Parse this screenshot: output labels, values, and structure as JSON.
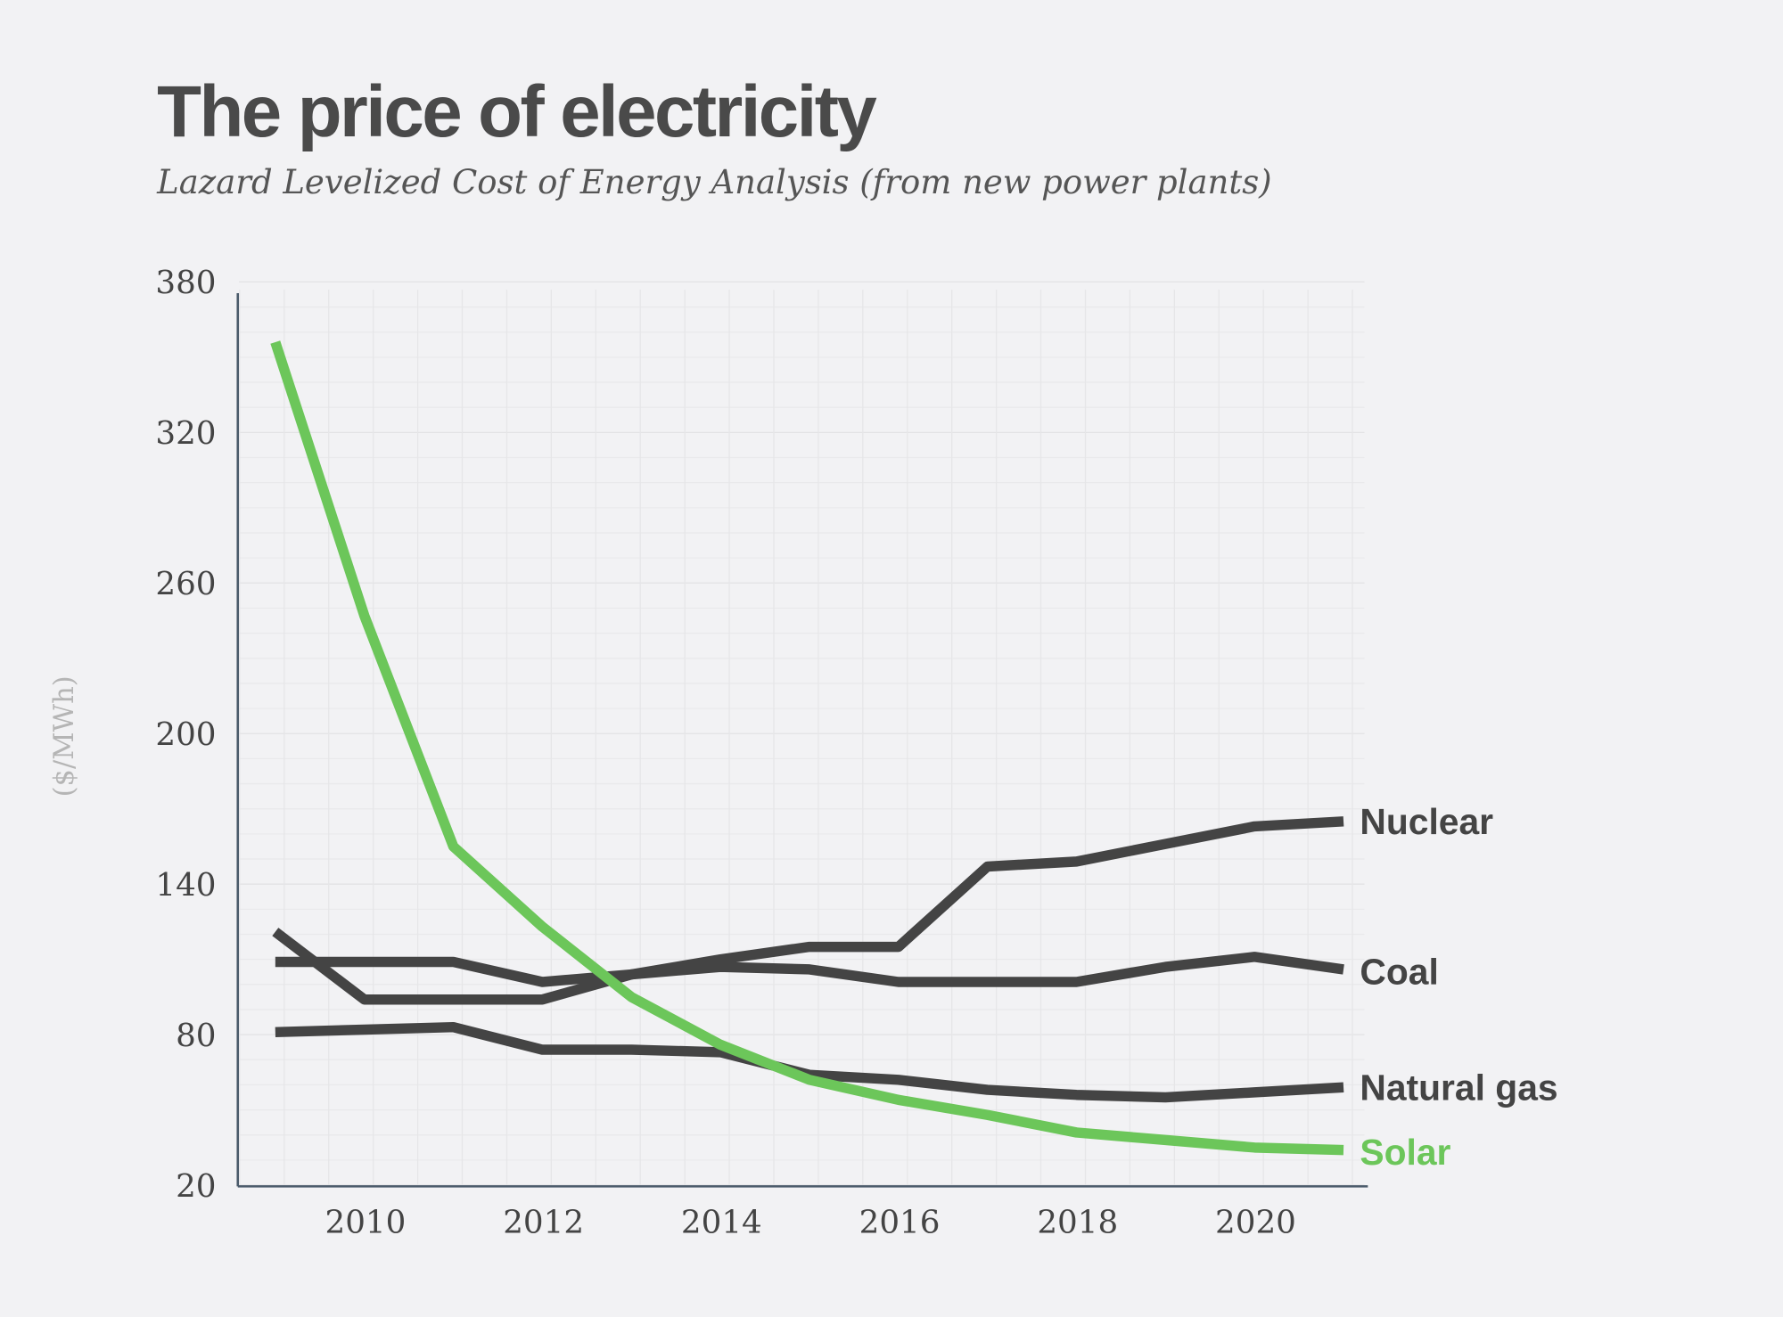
{
  "chart_data": {
    "type": "line",
    "title": "The price of electricity",
    "subtitle": "Lazard Levelized Cost of Energy Analysis (from new power plants)",
    "xlabel": "",
    "ylabel": "($/MWh)",
    "xlim": [
      2009,
      2021
    ],
    "ylim": [
      20,
      380
    ],
    "yticks": [
      "380",
      "320",
      "260",
      "200",
      "140",
      "80",
      "20"
    ],
    "ytick_values": [
      380,
      320,
      260,
      200,
      140,
      80,
      20
    ],
    "xticks": [
      "2010",
      "2012",
      "2014",
      "2016",
      "2018",
      "2020"
    ],
    "xtick_values": [
      2010,
      2012,
      2014,
      2016,
      2018,
      2020
    ],
    "grid": true,
    "legend": "direct labels at line ends (right)",
    "x": [
      2009,
      2010,
      2011,
      2012,
      2013,
      2014,
      2015,
      2016,
      2017,
      2018,
      2019,
      2020,
      2021
    ],
    "series": [
      {
        "name": "Nuclear",
        "color": "#444444",
        "values": [
          121,
          94,
          94,
          94,
          104,
          110,
          115,
          115,
          147,
          149,
          156,
          163,
          165
        ]
      },
      {
        "name": "Coal",
        "color": "#444444",
        "values": [
          109,
          109,
          109,
          101,
          104,
          107,
          106,
          101,
          101,
          101,
          107,
          111,
          106
        ]
      },
      {
        "name": "Natural gas",
        "color": "#444444",
        "values": [
          81,
          82,
          83,
          74,
          74,
          73,
          64,
          62,
          58,
          56,
          55,
          57,
          59
        ]
      },
      {
        "name": "Solar",
        "color": "#6cc65a",
        "values": [
          356,
          247,
          155,
          123,
          95,
          76,
          62,
          54,
          48,
          41,
          38,
          35,
          34
        ]
      }
    ]
  }
}
